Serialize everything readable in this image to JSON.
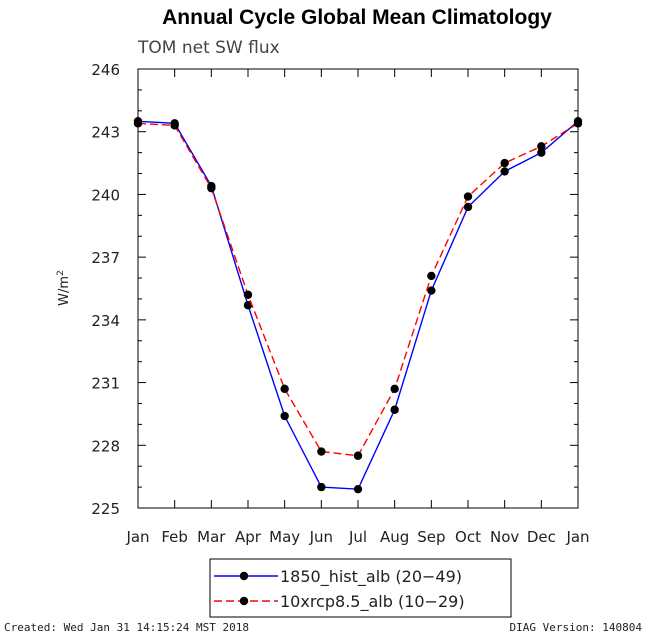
{
  "chart_data": {
    "type": "line",
    "title": "Annual Cycle Global Mean Climatology",
    "subtitle": "TOM net SW flux",
    "ylabel_base": "W/m",
    "ylabel_sup": "2",
    "categories": [
      "Jan",
      "Feb",
      "Mar",
      "Apr",
      "May",
      "Jun",
      "Jul",
      "Aug",
      "Sep",
      "Oct",
      "Nov",
      "Dec",
      "Jan"
    ],
    "ylim": [
      225,
      246
    ],
    "yticks": [
      225,
      228,
      231,
      234,
      237,
      240,
      243,
      246
    ],
    "grid": false,
    "legend_placement": "bottom",
    "series": [
      {
        "name": "1850_hist_alb (20−49)",
        "color": "#0000ff",
        "dash": "solid",
        "values": [
          243.5,
          243.4,
          240.4,
          234.7,
          229.4,
          226.0,
          225.9,
          229.7,
          235.4,
          239.4,
          241.1,
          242.0,
          243.5
        ]
      },
      {
        "name": "10xrcp8.5_alb (10−29)",
        "color": "#ff0000",
        "dash": "dashed",
        "values": [
          243.4,
          243.3,
          240.3,
          235.2,
          230.7,
          227.7,
          227.5,
          230.7,
          236.1,
          239.9,
          241.5,
          242.3,
          243.4
        ]
      }
    ]
  },
  "footer": {
    "created": "Created: Wed Jan 31 14:15:24 MST 2018",
    "version": "DIAG Version: 140804"
  }
}
